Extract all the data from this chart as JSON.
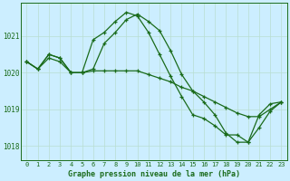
{
  "title": "Graphe pression niveau de la mer (hPa)",
  "bg_color": "#cceeff",
  "grid_color": "#b8ddd0",
  "line_color": "#1a6b1a",
  "xlim": [
    -0.5,
    23.5
  ],
  "ylim": [
    1017.6,
    1021.9
  ],
  "yticks": [
    1018,
    1019,
    1020,
    1021
  ],
  "xticks": [
    0,
    1,
    2,
    3,
    4,
    5,
    6,
    7,
    8,
    9,
    10,
    11,
    12,
    13,
    14,
    15,
    16,
    17,
    18,
    19,
    20,
    21,
    22,
    23
  ],
  "series1": [
    1020.3,
    1020.1,
    1020.5,
    1020.4,
    1020.0,
    1020.0,
    1020.9,
    1021.1,
    1021.4,
    1021.65,
    1021.55,
    1021.1,
    1020.5,
    1019.9,
    1019.35,
    1018.85,
    1018.75,
    1018.55,
    1018.3,
    1018.3,
    1018.1,
    1018.5,
    1018.95,
    1019.2
  ],
  "series2": [
    1020.3,
    1020.1,
    1020.5,
    1020.4,
    1020.0,
    1020.0,
    1020.1,
    1020.8,
    1021.1,
    1021.45,
    1021.6,
    1021.4,
    1021.15,
    1020.6,
    1019.95,
    1019.5,
    1019.2,
    1018.85,
    1018.35,
    1018.1,
    1018.1,
    1018.85,
    1019.15,
    1019.2
  ],
  "series3": [
    1020.3,
    1020.1,
    1020.4,
    1020.3,
    1020.0,
    1020.0,
    1020.05,
    1020.05,
    1020.05,
    1020.05,
    1020.05,
    1019.95,
    1019.85,
    1019.75,
    1019.6,
    1019.5,
    1019.35,
    1019.2,
    1019.05,
    1018.9,
    1018.8,
    1018.8,
    1019.0,
    1019.2
  ]
}
